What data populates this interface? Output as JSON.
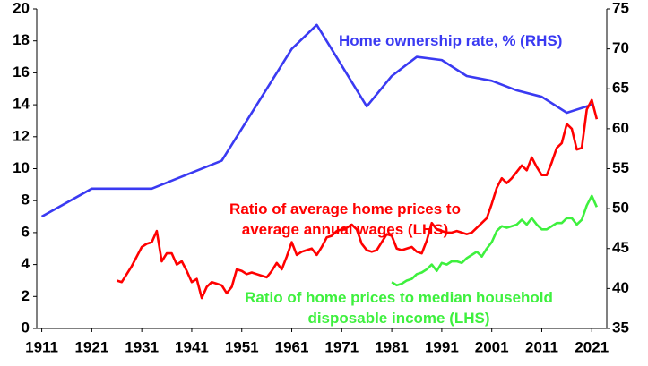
{
  "chart_data": {
    "type": "line",
    "xlim": [
      1910,
      2024
    ],
    "xticks": [
      1911,
      1921,
      1931,
      1941,
      1951,
      1961,
      1971,
      1981,
      1991,
      2001,
      2011,
      2021
    ],
    "ylim": [
      0,
      20
    ],
    "yticks": [
      0,
      2,
      4,
      6,
      8,
      10,
      12,
      14,
      16,
      18,
      20
    ],
    "y2lim": [
      35,
      75
    ],
    "y2ticks": [
      35,
      40,
      45,
      50,
      55,
      60,
      65,
      70,
      75
    ],
    "series": [
      {
        "name": "Home ownership rate, % (RHS)",
        "color": "#3a3af2",
        "axis": "y2",
        "x": [
          1911,
          1921,
          1933,
          1947,
          1961,
          1966,
          1976,
          1981,
          1986,
          1991,
          1996,
          2001,
          2006,
          2011,
          2016,
          2021
        ],
        "values": [
          49,
          52.5,
          52.5,
          56,
          70,
          73,
          62.8,
          66.6,
          69,
          68.6,
          66.6,
          66,
          64.8,
          64,
          62,
          63
        ]
      },
      {
        "name": "Ratio of average home prices to average annual wages (LHS)",
        "color": "#ff0000",
        "x": [
          1926,
          1927,
          1928,
          1929,
          1930,
          1931,
          1932,
          1933,
          1934,
          1935,
          1936,
          1937,
          1938,
          1939,
          1940,
          1941,
          1942,
          1943,
          1944,
          1945,
          1946,
          1947,
          1948,
          1949,
          1950,
          1951,
          1952,
          1953,
          1954,
          1955,
          1956,
          1957,
          1958,
          1959,
          1960,
          1961,
          1962,
          1963,
          1964,
          1965,
          1966,
          1967,
          1968,
          1969,
          1970,
          1971,
          1972,
          1973,
          1974,
          1975,
          1976,
          1977,
          1978,
          1979,
          1980,
          1981,
          1982,
          1983,
          1984,
          1985,
          1986,
          1987,
          1988,
          1989,
          1990,
          1991,
          1992,
          1993,
          1994,
          1995,
          1996,
          1997,
          1998,
          1999,
          2000,
          2001,
          2002,
          2003,
          2004,
          2005,
          2006,
          2007,
          2008,
          2009,
          2010,
          2011,
          2012,
          2013,
          2014,
          2015,
          2016,
          2017,
          2018,
          2019,
          2020,
          2021,
          2022
        ],
        "values": [
          3.0,
          2.9,
          3.4,
          3.9,
          4.5,
          5.1,
          5.3,
          5.4,
          6.1,
          4.2,
          4.7,
          4.7,
          4.0,
          4.2,
          3.6,
          2.9,
          3.1,
          1.9,
          2.6,
          2.9,
          2.8,
          2.7,
          2.2,
          2.6,
          3.7,
          3.6,
          3.4,
          3.5,
          3.4,
          3.3,
          3.2,
          3.6,
          4.1,
          3.7,
          4.5,
          5.4,
          4.6,
          4.8,
          4.9,
          5.0,
          4.6,
          5.1,
          5.7,
          5.8,
          6.1,
          6.2,
          6.3,
          6.5,
          6.2,
          5.3,
          4.9,
          4.8,
          4.9,
          5.4,
          5.9,
          5.8,
          5.0,
          4.9,
          5.0,
          5.1,
          4.8,
          4.7,
          5.5,
          6.6,
          6.2,
          6.1,
          6.0,
          6.0,
          6.1,
          6.0,
          5.9,
          6.0,
          6.3,
          6.6,
          6.9,
          7.8,
          8.8,
          9.4,
          9.1,
          9.4,
          9.8,
          10.2,
          9.9,
          10.7,
          10.1,
          9.6,
          9.6,
          10.4,
          11.3,
          11.6,
          12.8,
          12.5,
          11.2,
          11.3,
          13.7,
          14.3,
          13.1
        ]
      },
      {
        "name": "Ratio of home prices to median household disposable income (LHS)",
        "color": "#3ef03e",
        "x": [
          1981,
          1982,
          1983,
          1984,
          1985,
          1986,
          1987,
          1988,
          1989,
          1990,
          1991,
          1992,
          1993,
          1994,
          1995,
          1996,
          1997,
          1998,
          1999,
          2000,
          2001,
          2002,
          2003,
          2004,
          2005,
          2006,
          2007,
          2008,
          2009,
          2010,
          2011,
          2012,
          2013,
          2014,
          2015,
          2016,
          2017,
          2018,
          2019,
          2020,
          2021,
          2022
        ],
        "values": [
          2.9,
          2.7,
          2.8,
          3.0,
          3.1,
          3.4,
          3.5,
          3.7,
          4.0,
          3.6,
          4.1,
          4.0,
          4.2,
          4.2,
          4.1,
          4.4,
          4.6,
          4.8,
          4.5,
          5.0,
          5.4,
          6.1,
          6.4,
          6.3,
          6.4,
          6.5,
          6.8,
          6.5,
          6.9,
          6.5,
          6.2,
          6.2,
          6.4,
          6.6,
          6.6,
          6.9,
          6.9,
          6.5,
          6.8,
          7.7,
          8.3,
          7.6
        ]
      }
    ]
  }
}
